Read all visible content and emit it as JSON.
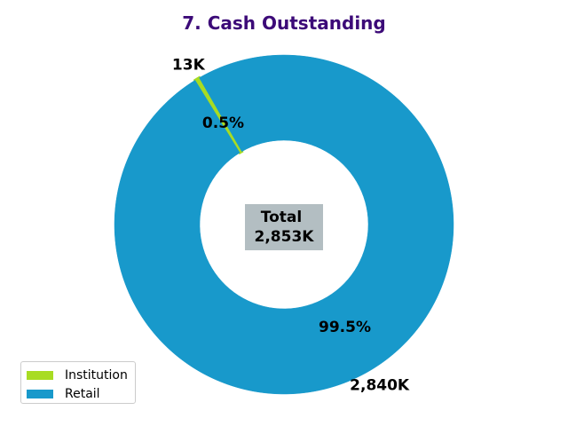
{
  "chart_data": {
    "type": "donut",
    "title": "7. Cash Outstanding",
    "title_color": "#3c0a78",
    "categories": [
      "Institution",
      "Retail"
    ],
    "values": [
      13,
      2840
    ],
    "value_labels": [
      "13K",
      "2,840K"
    ],
    "percent_labels": [
      "0.5%",
      "99.5%"
    ],
    "colors": [
      "#a8dc22",
      "#1899cb"
    ],
    "center_label": [
      "Total",
      "2,853K"
    ],
    "center_box_color": "#b3bec2",
    "legend": {
      "position": "lower-left",
      "entries": [
        "Institution",
        "Retail"
      ]
    }
  }
}
